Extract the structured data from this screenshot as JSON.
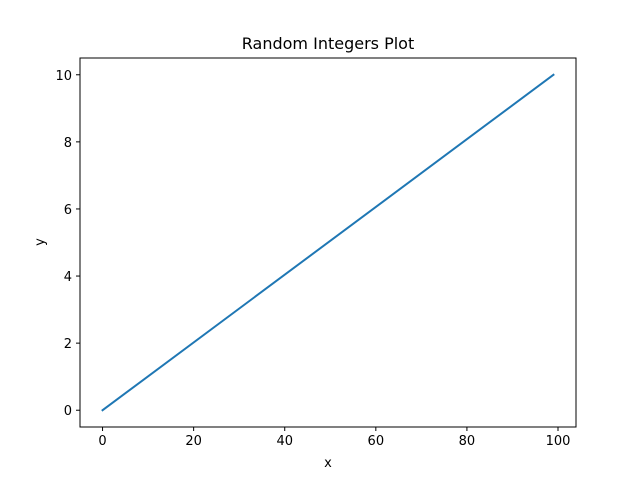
{
  "chart_data": {
    "type": "line",
    "title": "Random Integers Plot",
    "xlabel": "x",
    "ylabel": "y",
    "xlim": [
      -4.95,
      103.95
    ],
    "ylim": [
      -0.5,
      10.5
    ],
    "xticks": [
      0,
      20,
      40,
      60,
      80,
      100
    ],
    "yticks": [
      0,
      2,
      4,
      6,
      8,
      10
    ],
    "grid": false,
    "series": [
      {
        "color": "#1f77b4",
        "x": [
          0,
          99
        ],
        "y": [
          0,
          10
        ]
      }
    ]
  }
}
